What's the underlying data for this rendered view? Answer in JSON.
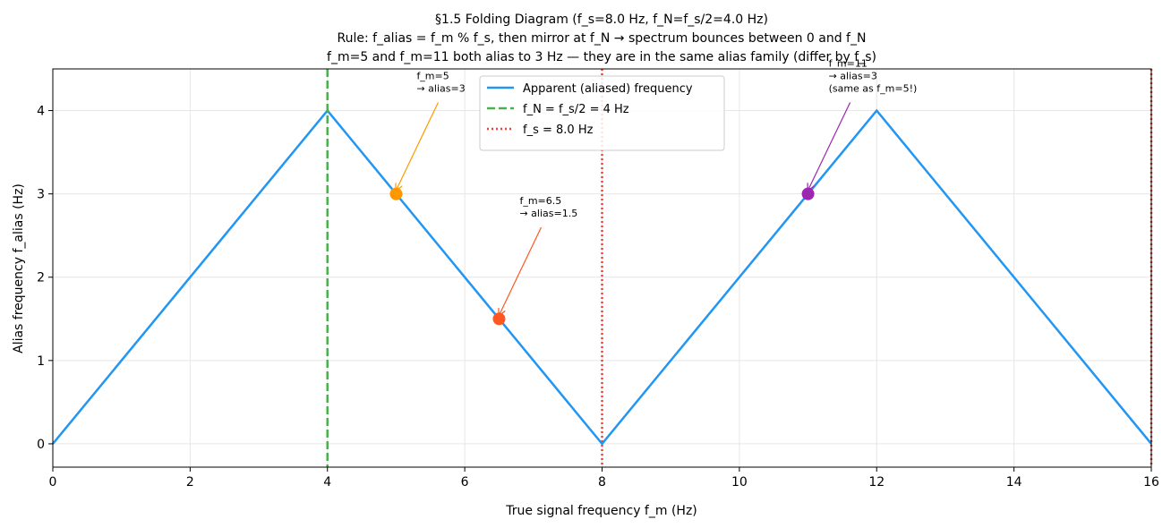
{
  "chart_data": {
    "type": "line",
    "title": [
      "§1.5 Folding Diagram  (f_s=8.0 Hz, f_N=f_s/2=4.0 Hz)",
      "Rule: f_alias = f_m % f_s, then mirror at f_N  →  spectrum bounces between 0 and f_N",
      "f_m=5 and f_m=11 both alias to 3 Hz — they are in the same alias family (differ by f_s)"
    ],
    "xlabel": "True signal frequency f_m (Hz)",
    "ylabel": "Alias frequency  f_alias (Hz)",
    "xlim": [
      0,
      16
    ],
    "ylim": [
      -0.28,
      4.5
    ],
    "xticks": [
      0,
      2,
      4,
      6,
      8,
      10,
      12,
      14,
      16
    ],
    "yticks": [
      0,
      1,
      2,
      3,
      4
    ],
    "grid": true,
    "legend": "upper center",
    "series": [
      {
        "name": "Apparent (aliased) frequency",
        "color": "#2196f3",
        "style": "solid",
        "x": [
          0,
          4,
          8,
          12,
          16
        ],
        "values": [
          0,
          4,
          0,
          4,
          0
        ]
      }
    ],
    "vlines": [
      {
        "name": "f_N = f_s/2 = 4 Hz",
        "color": "#4caf50",
        "style": "dashed",
        "x": [
          4
        ]
      },
      {
        "name": "f_s = 8.0 Hz",
        "color": "#f44336",
        "style": "dotted",
        "x": [
          8,
          16
        ]
      }
    ],
    "points": [
      {
        "x": 5,
        "y": 3,
        "color": "#ff9800",
        "label": [
          "f_m=5",
          "→ alias=3"
        ],
        "text_x": 5.3,
        "text_y": 4.42
      },
      {
        "x": 6.5,
        "y": 1.5,
        "color": "#ff5722",
        "label": [
          "f_m=6.5",
          "→ alias=1.5"
        ],
        "text_x": 6.8,
        "text_y": 2.92
      },
      {
        "x": 11,
        "y": 3,
        "color": "#9c27b0",
        "label": [
          "f_m=11",
          "→ alias=3",
          "(same as f_m=5!)"
        ],
        "text_x": 11.3,
        "text_y": 4.57
      }
    ]
  }
}
